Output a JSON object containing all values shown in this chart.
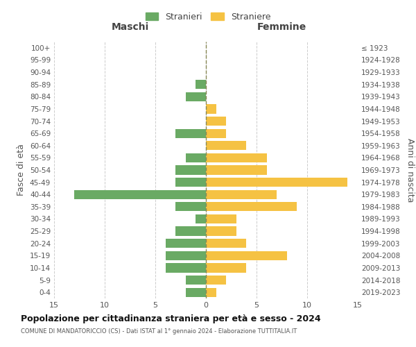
{
  "age_groups": [
    "100+",
    "95-99",
    "90-94",
    "85-89",
    "80-84",
    "75-79",
    "70-74",
    "65-69",
    "60-64",
    "55-59",
    "50-54",
    "45-49",
    "40-44",
    "35-39",
    "30-34",
    "25-29",
    "20-24",
    "15-19",
    "10-14",
    "5-9",
    "0-4"
  ],
  "birth_years": [
    "≤ 1923",
    "1924-1928",
    "1929-1933",
    "1934-1938",
    "1939-1943",
    "1944-1948",
    "1949-1953",
    "1954-1958",
    "1959-1963",
    "1964-1968",
    "1969-1973",
    "1974-1978",
    "1979-1983",
    "1984-1988",
    "1989-1993",
    "1994-1998",
    "1999-2003",
    "2004-2008",
    "2009-2013",
    "2014-2018",
    "2019-2023"
  ],
  "maschi": [
    0,
    0,
    0,
    1,
    2,
    0,
    0,
    3,
    0,
    2,
    3,
    3,
    13,
    3,
    1,
    3,
    4,
    4,
    4,
    2,
    2
  ],
  "femmine": [
    0,
    0,
    0,
    0,
    0,
    1,
    2,
    2,
    4,
    6,
    6,
    14,
    7,
    9,
    3,
    3,
    4,
    8,
    4,
    2,
    1
  ],
  "maschi_color": "#6aaa64",
  "femmine_color": "#f5c243",
  "background_color": "#ffffff",
  "grid_color": "#cccccc",
  "title": "Popolazione per cittadinanza straniera per età e sesso - 2024",
  "subtitle": "COMUNE DI MANDATORICCIO (CS) - Dati ISTAT al 1° gennaio 2024 - Elaborazione TUTTITALIA.IT",
  "ylabel_left": "Fasce di età",
  "ylabel_right": "Anni di nascita",
  "xlabel_maschi": "Maschi",
  "xlabel_femmine": "Femmine",
  "legend_stranieri": "Stranieri",
  "legend_straniere": "Straniere",
  "xlim": 15
}
